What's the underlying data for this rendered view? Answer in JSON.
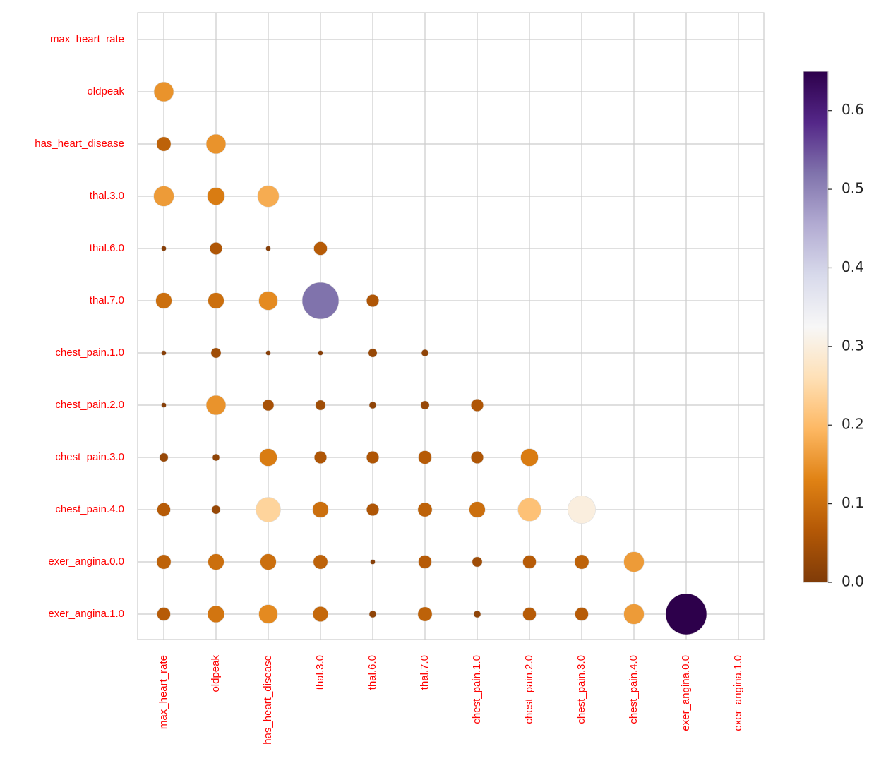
{
  "chart_data": {
    "type": "bubble-matrix",
    "categories": [
      "max_heart_rate",
      "oldpeak",
      "has_heart_disease",
      "thal.3.0",
      "thal.6.0",
      "thal.7.0",
      "chest_pain.1.0",
      "chest_pain.2.0",
      "chest_pain.3.0",
      "chest_pain.4.0",
      "exer_angina.0.0",
      "exer_angina.1.0"
    ],
    "values": [
      [],
      [
        0.15
      ],
      [
        0.08,
        0.15
      ],
      [
        0.16,
        0.12,
        0.18
      ],
      [
        0.01,
        0.06,
        0.01,
        0.07
      ],
      [
        0.1,
        0.1,
        0.14,
        0.52,
        0.06
      ],
      [
        0.01,
        0.04,
        0.01,
        0.01,
        0.03,
        0.02
      ],
      [
        0.01,
        0.15,
        0.05,
        0.04,
        0.02,
        0.03,
        0.06
      ],
      [
        0.03,
        0.02,
        0.12,
        0.06,
        0.06,
        0.07,
        0.06,
        0.12
      ],
      [
        0.07,
        0.03,
        0.24,
        0.1,
        0.06,
        0.08,
        0.1,
        0.21,
        0.3
      ],
      [
        0.08,
        0.1,
        0.1,
        0.08,
        0.01,
        0.07,
        0.04,
        0.07,
        0.08,
        0.16
      ],
      [
        0.07,
        0.11,
        0.14,
        0.09,
        0.02,
        0.08,
        0.02,
        0.07,
        0.07,
        0.16,
        0.65
      ]
    ],
    "colormap": [
      "#7f3b08",
      "#b35806",
      "#e08214",
      "#fdb863",
      "#fee0b6",
      "#f7f7f7",
      "#d8daeb",
      "#b2abd2",
      "#8073ac",
      "#542788",
      "#2d004b"
    ],
    "clim": [
      0,
      0.65
    ],
    "cticks": [
      {
        "value": 0,
        "label": "0.0"
      },
      {
        "value": 0.1,
        "label": "0.1"
      },
      {
        "value": 0.2,
        "label": "0.2"
      },
      {
        "value": 0.3,
        "label": "0.3"
      },
      {
        "value": 0.4,
        "label": "0.4"
      },
      {
        "value": 0.5,
        "label": "0.5"
      },
      {
        "value": 0.6,
        "label": "0.6"
      }
    ],
    "grid": true
  }
}
